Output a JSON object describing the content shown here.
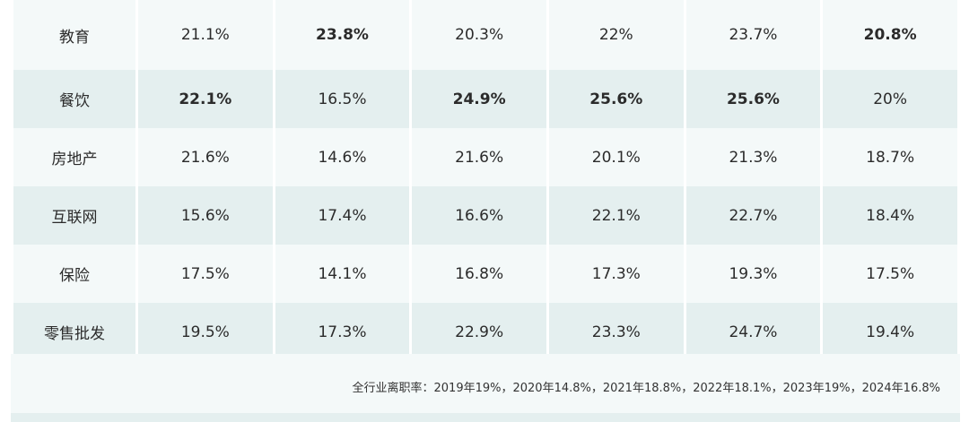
{
  "rows": [
    {
      "category": "教育",
      "values": [
        "21.1%",
        "23.8%",
        "20.3%",
        "22%",
        "23.7%",
        "20.8%"
      ],
      "bold": [
        false,
        true,
        false,
        false,
        false,
        true
      ]
    },
    {
      "category": "餐饮",
      "values": [
        "22.1%",
        "16.5%",
        "24.9%",
        "25.6%",
        "25.6%",
        "20%"
      ],
      "bold": [
        true,
        false,
        true,
        true,
        true,
        false
      ]
    },
    {
      "category": "房地产",
      "values": [
        "21.6%",
        "14.6%",
        "21.6%",
        "20.1%",
        "21.3%",
        "18.7%"
      ],
      "bold": [
        false,
        false,
        false,
        false,
        false,
        false
      ]
    },
    {
      "category": "互联网",
      "values": [
        "15.6%",
        "17.4%",
        "16.6%",
        "22.1%",
        "22.7%",
        "18.4%"
      ],
      "bold": [
        false,
        false,
        false,
        false,
        false,
        false
      ]
    },
    {
      "category": "保险",
      "values": [
        "17.5%",
        "14.1%",
        "16.8%",
        "17.3%",
        "19.3%",
        "17.5%"
      ],
      "bold": [
        false,
        false,
        false,
        false,
        false,
        false
      ]
    },
    {
      "category": "零售批发",
      "values": [
        "19.5%",
        "17.3%",
        "22.9%",
        "23.3%",
        "24.7%",
        "19.4%"
      ],
      "bold": [
        false,
        false,
        false,
        false,
        false,
        false
      ]
    }
  ],
  "footer": {
    "note": "全行业离职率：2019年19%，2020年14.8%，2021年18.8%，2022年18.1%，2023年19%，2024年16.8%"
  },
  "colors": {
    "row_light": "#f4f9f9",
    "row_dark": "#e4efef",
    "text": "#2b2b2b"
  }
}
